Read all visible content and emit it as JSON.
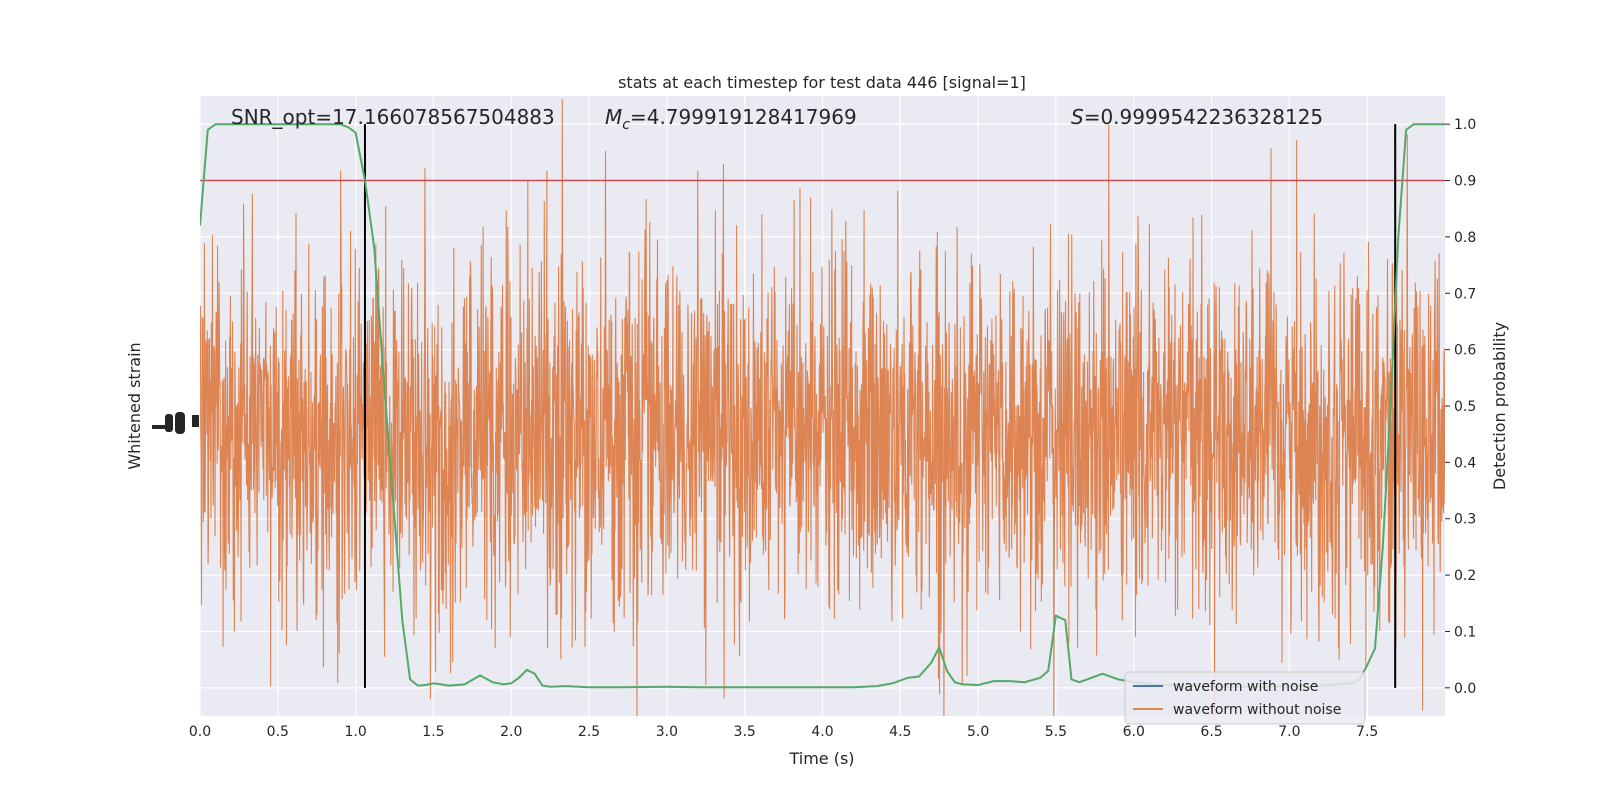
{
  "chart_data": {
    "type": "line",
    "title": "stats at each timestep for test data 446 [signal=1]",
    "xlabel": "Time (s)",
    "ylabel_left": "Whitened strain",
    "ylabel_right": "Detection probability",
    "xlim": [
      0.0,
      8.0
    ],
    "ylim_right": [
      -0.05,
      1.05
    ],
    "x_ticks": [
      "0.0",
      "0.5",
      "1.0",
      "1.5",
      "2.0",
      "2.5",
      "3.0",
      "3.5",
      "4.0",
      "4.5",
      "5.0",
      "5.5",
      "6.0",
      "6.5",
      "7.0",
      "7.5"
    ],
    "x_tick_values": [
      0.0,
      0.5,
      1.0,
      1.5,
      2.0,
      2.5,
      3.0,
      3.5,
      4.0,
      4.5,
      5.0,
      5.5,
      6.0,
      6.5,
      7.0,
      7.5
    ],
    "y_right_ticks": [
      "0.0",
      "0.1",
      "0.2",
      "0.3",
      "0.4",
      "0.5",
      "0.6",
      "0.7",
      "0.8",
      "0.9",
      "1.0"
    ],
    "y_right_tick_values": [
      0.0,
      0.1,
      0.2,
      0.3,
      0.4,
      0.5,
      0.6,
      0.7,
      0.8,
      0.9,
      1.0
    ],
    "grid": true,
    "legend_placement": "lower-right",
    "annotations": {
      "snr": "SNR_opt=17.166078567504883",
      "mc_symbol": "M",
      "mc_sub": "c",
      "mc_value": "=4.799919128417969",
      "s_symbol": "S",
      "s_value": "=0.9999542236328125"
    },
    "threshold": {
      "value": 0.9,
      "color": "#c44e52"
    },
    "vertical_lines": [
      1.06,
      7.68
    ],
    "series": [
      {
        "name": "waveform with noise",
        "color": "#4c72b0"
      },
      {
        "name": "waveform without noise",
        "color": "#dd8452"
      },
      {
        "color": "#55a868",
        "x": [
          0.0,
          0.05,
          0.1,
          0.15,
          0.2,
          0.3,
          0.4,
          0.5,
          0.6,
          0.7,
          0.8,
          0.9,
          0.95,
          1.0,
          1.06,
          1.12,
          1.18,
          1.25,
          1.3,
          1.35,
          1.4,
          1.45,
          1.5,
          1.55,
          1.6,
          1.7,
          1.8,
          1.88,
          1.95,
          2.0,
          2.05,
          2.1,
          2.15,
          2.2,
          2.25,
          2.35,
          2.5,
          2.7,
          3.0,
          3.2,
          3.5,
          3.8,
          4.0,
          4.2,
          4.35,
          4.45,
          4.55,
          4.62,
          4.7,
          4.75,
          4.8,
          4.85,
          4.9,
          5.0,
          5.1,
          5.2,
          5.3,
          5.4,
          5.45,
          5.5,
          5.56,
          5.6,
          5.65,
          5.7,
          5.8,
          5.9,
          6.0,
          6.2,
          6.4,
          6.6,
          6.8,
          7.0,
          7.2,
          7.4,
          7.45,
          7.5,
          7.55,
          7.6,
          7.65,
          7.7,
          7.75,
          7.8,
          7.85,
          7.9,
          8.0
        ],
        "y": [
          0.82,
          0.99,
          1.0,
          1.0,
          1.0,
          1.0,
          1.0,
          1.0,
          1.0,
          1.0,
          1.0,
          1.0,
          0.995,
          0.985,
          0.9,
          0.78,
          0.55,
          0.3,
          0.12,
          0.015,
          0.004,
          0.005,
          0.008,
          0.006,
          0.004,
          0.006,
          0.022,
          0.01,
          0.006,
          0.008,
          0.018,
          0.032,
          0.025,
          0.004,
          0.002,
          0.003,
          0.001,
          0.001,
          0.002,
          0.001,
          0.001,
          0.001,
          0.001,
          0.001,
          0.003,
          0.008,
          0.018,
          0.02,
          0.045,
          0.072,
          0.03,
          0.01,
          0.006,
          0.005,
          0.012,
          0.012,
          0.01,
          0.018,
          0.03,
          0.128,
          0.12,
          0.015,
          0.01,
          0.015,
          0.025,
          0.015,
          0.01,
          0.005,
          0.003,
          0.002,
          0.002,
          0.003,
          0.004,
          0.008,
          0.015,
          0.04,
          0.07,
          0.25,
          0.5,
          0.8,
          0.99,
          1.0,
          1.0,
          1.0,
          1.0
        ]
      }
    ]
  }
}
